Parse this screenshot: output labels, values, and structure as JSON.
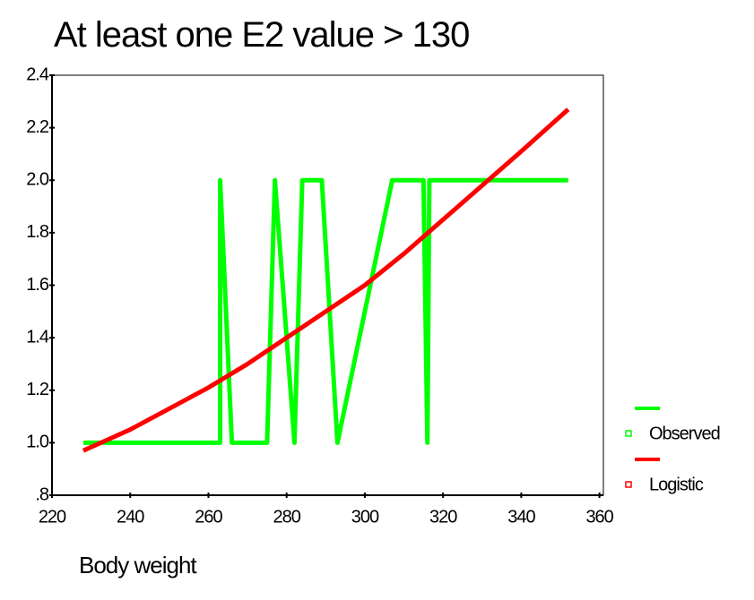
{
  "chart_data": {
    "type": "line",
    "title": "At least one E2 value > 130",
    "x_label": "Body weight",
    "xlim": [
      220,
      361
    ],
    "xticks": [
      220,
      240,
      260,
      280,
      300,
      320,
      340,
      360
    ],
    "ylim": [
      0.8,
      2.4
    ],
    "yticks": [
      2.4,
      2.2,
      {
        "value": 2,
        "label": "2.0"
      },
      1.8,
      1.6,
      1.4,
      1.2,
      {
        "value": 1,
        "label": "1.0"
      },
      {
        "value": 0.8,
        "label": ".8"
      }
    ],
    "grid": false,
    "legend": "right",
    "series": [
      {
        "name": "Observed",
        "color": "#00ff00",
        "x": [
          228,
          263,
          263,
          266,
          275,
          277,
          282,
          284,
          289,
          293,
          307,
          315,
          316,
          316.5,
          352
        ],
        "values": [
          1,
          1,
          2,
          1,
          1,
          2,
          1,
          2,
          2,
          1,
          2,
          2,
          1,
          2,
          2
        ]
      },
      {
        "name": "Logistic",
        "color": "#ff0000",
        "x": [
          228,
          240,
          250,
          260,
          270,
          280,
          290,
          300,
          310,
          320,
          330,
          340,
          352
        ],
        "values": [
          0.97,
          1.05,
          1.13,
          1.21,
          1.3,
          1.4,
          1.5,
          1.6,
          1.72,
          1.85,
          1.98,
          2.11,
          2.27
        ]
      }
    ]
  }
}
